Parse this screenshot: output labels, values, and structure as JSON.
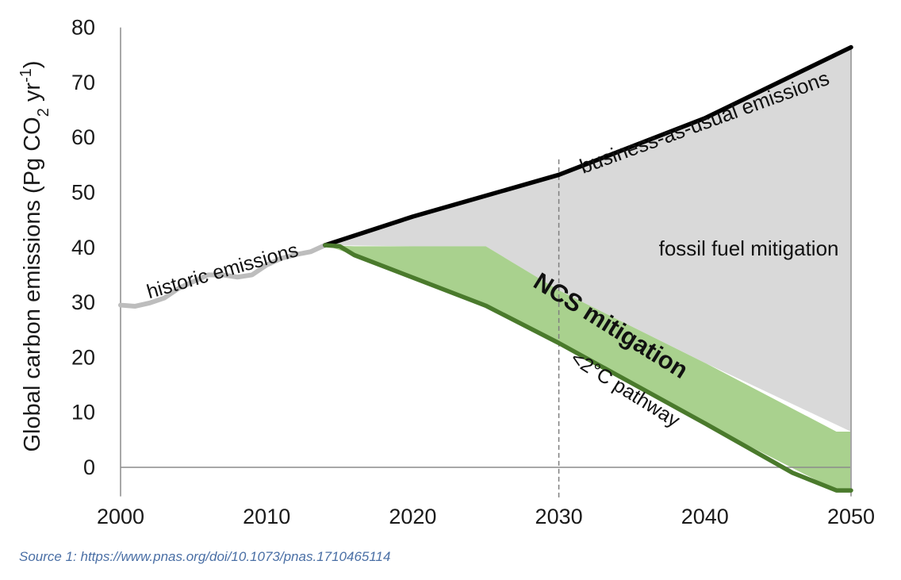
{
  "chart_data": {
    "type": "area",
    "xlim": [
      2000,
      2050
    ],
    "ylim": [
      -5,
      80
    ],
    "x_ticks": [
      "2000",
      "2010",
      "2020",
      "2030",
      "2040",
      "2050"
    ],
    "y_ticks": [
      "0",
      "10",
      "20",
      "30",
      "40",
      "50",
      "60",
      "70",
      "80"
    ],
    "ylabel": "Global carbon emissions (Pg CO₂ yr⁻¹)",
    "grid": false,
    "reference_line": {
      "x": 2030,
      "style": "dashed"
    },
    "series": [
      {
        "name": "historic emissions",
        "color": "#bdbdbd",
        "x": [
          2000,
          2001,
          2002,
          2003,
          2004,
          2005,
          2006,
          2007,
          2008,
          2009,
          2010,
          2011,
          2012,
          2013,
          2014
        ],
        "values": [
          29.5,
          29.3,
          29.9,
          30.8,
          32.6,
          33.8,
          35.0,
          35.0,
          34.6,
          35.0,
          36.8,
          38.0,
          38.7,
          39.2,
          40.4
        ]
      },
      {
        "name": "business-as-usual emissions",
        "color": "#000000",
        "x": [
          2014,
          2020,
          2030,
          2040,
          2050
        ],
        "values": [
          40.4,
          45.6,
          53.2,
          63.5,
          76.4
        ]
      },
      {
        "name": "<2°C pathway",
        "color": "#4a7a2c",
        "x": [
          2014,
          2015,
          2016,
          2025,
          2030,
          2040,
          2046,
          2049,
          2050
        ],
        "values": [
          40.4,
          40.2,
          38.6,
          29.4,
          22.6,
          8.0,
          -1.0,
          -4.2,
          -4.2
        ]
      }
    ],
    "areas": [
      {
        "name": "fossil fuel mitigation",
        "color": "#d9d9d9",
        "x": [
          2014,
          2020,
          2025,
          2030,
          2040,
          2050
        ],
        "upper": [
          40.4,
          45.6,
          49.5,
          53.2,
          63.5,
          76.4
        ],
        "lower": [
          40.4,
          40.2,
          40.2,
          32.2,
          19.0,
          6.5
        ]
      },
      {
        "name": "NCS mitigation",
        "color": "#a9d18e",
        "x": [
          2014,
          2016,
          2025,
          2030,
          2040,
          2049,
          2050
        ],
        "upper": [
          40.4,
          40.2,
          40.2,
          32.2,
          19.0,
          6.5,
          6.5
        ],
        "lower": [
          40.4,
          38.6,
          29.4,
          22.6,
          8.0,
          -4.2,
          -4.2
        ]
      }
    ],
    "annotations": [
      {
        "text": "historic emissions",
        "x": 2007,
        "y": 35.5,
        "angle": -16
      },
      {
        "text": "business-as-usual emissions",
        "x": 2040,
        "y": 62.5,
        "angle": -20
      },
      {
        "text": "fossil fuel mitigation",
        "x": 2043,
        "y": 39.5,
        "angle": 0
      },
      {
        "text": "NCS mitigation",
        "x": 2033.5,
        "y": 25.5,
        "angle": 32
      },
      {
        "text": "<2°C pathway",
        "x": 2034.5,
        "y": 14.0,
        "angle": 32
      }
    ]
  },
  "source": "Source 1: https://www.pnas.org/doi/10.1073/pnas.1710465114"
}
